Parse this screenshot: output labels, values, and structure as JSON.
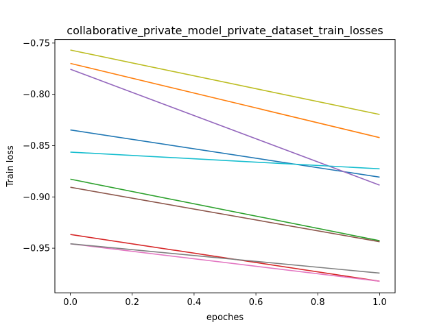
{
  "chart_data": {
    "type": "line",
    "title": "collaborative_private_model_private_dataset_train_losses",
    "xlabel": "epoches",
    "ylabel": "Train loss",
    "xlim": [
      -0.05,
      1.05
    ],
    "ylim": [
      -0.9935,
      -0.7465
    ],
    "xticks": [
      0.0,
      0.2,
      0.4,
      0.6,
      0.8,
      1.0
    ],
    "xtick_labels": [
      "0.0",
      "0.2",
      "0.4",
      "0.6",
      "0.8",
      "1.0"
    ],
    "yticks": [
      -0.75,
      -0.8,
      -0.85,
      -0.9,
      -0.95
    ],
    "ytick_labels": [
      "−0.75",
      "−0.80",
      "−0.85",
      "−0.90",
      "−0.95"
    ],
    "grid": false,
    "x": [
      0,
      1
    ],
    "series": [
      {
        "values": [
          -0.8347,
          -0.8807
        ],
        "color": "#1f77b4"
      },
      {
        "values": [
          -0.7698,
          -0.8422
        ],
        "color": "#ff7f0e"
      },
      {
        "values": [
          -0.8827,
          -0.9427
        ],
        "color": "#2ca02c"
      },
      {
        "values": [
          -0.9366,
          -0.9822
        ],
        "color": "#d62728"
      },
      {
        "values": [
          -0.7755,
          -0.8885
        ],
        "color": "#9467bd"
      },
      {
        "values": [
          -0.8906,
          -0.9437
        ],
        "color": "#8c564b"
      },
      {
        "values": [
          -0.9457,
          -0.9822
        ],
        "color": "#e377c2"
      },
      {
        "values": [
          -0.9457,
          -0.9743
        ],
        "color": "#7f7f7f"
      },
      {
        "values": [
          -0.7568,
          -0.8196
        ],
        "color": "#bcbd22"
      },
      {
        "values": [
          -0.8563,
          -0.8726
        ],
        "color": "#17becf"
      }
    ]
  }
}
